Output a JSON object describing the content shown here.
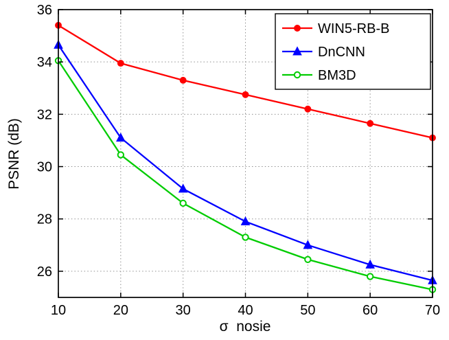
{
  "figure": {
    "background": "#ffffff",
    "text_color": "#000000",
    "grid_color": "#8f8f8f"
  },
  "chart_data": {
    "type": "line",
    "title": "",
    "xlabel": "σ  nosie",
    "ylabel": "PSNR (dB)",
    "x": [
      10,
      20,
      30,
      40,
      50,
      60,
      70
    ],
    "xlim": [
      10,
      70
    ],
    "ylim": [
      25,
      36
    ],
    "xticks": [
      10,
      20,
      30,
      40,
      50,
      60,
      70
    ],
    "yticks": [
      26,
      28,
      30,
      32,
      34,
      36
    ],
    "grid": true,
    "grid_style": "dotted",
    "legend_position": "top-right",
    "series": [
      {
        "name": "WIN5-RB-B",
        "color": "#ff0000",
        "marker": "circle-filled",
        "values": [
          35.4,
          33.95,
          33.3,
          32.75,
          32.2,
          31.65,
          31.1
        ]
      },
      {
        "name": "DnCNN",
        "color": "#0000ff",
        "marker": "triangle-filled",
        "values": [
          34.65,
          31.1,
          29.15,
          27.9,
          27.0,
          26.25,
          25.65
        ]
      },
      {
        "name": "BM3D",
        "color": "#00cc00",
        "marker": "circle-open",
        "values": [
          34.05,
          30.45,
          28.6,
          27.3,
          26.45,
          25.8,
          25.3
        ]
      }
    ]
  }
}
